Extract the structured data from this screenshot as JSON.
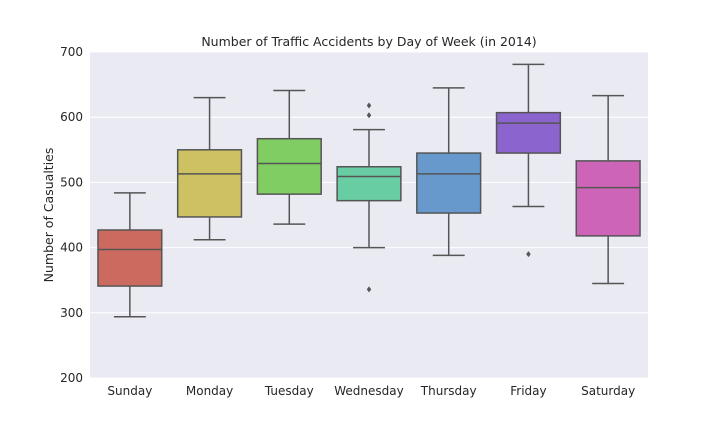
{
  "chart_data": {
    "type": "box",
    "title": "Number of Traffic Accidents by Day of Week (in 2014)",
    "xlabel": "",
    "ylabel": "Number of Casualties",
    "ylim": [
      200,
      700
    ],
    "yticks": [
      200,
      300,
      400,
      500,
      600,
      700
    ],
    "grid": true,
    "background": "#eaeaf2",
    "categories": [
      "Sunday",
      "Monday",
      "Tuesday",
      "Wednesday",
      "Thursday",
      "Friday",
      "Saturday"
    ],
    "boxes": [
      {
        "category": "Sunday",
        "whisker_low": 294,
        "q1": 341,
        "median": 397,
        "q3": 427,
        "whisker_high": 484,
        "outliers": [],
        "color": "#cd6a5f"
      },
      {
        "category": "Monday",
        "whisker_low": 412,
        "q1": 447,
        "median": 513,
        "q3": 550,
        "whisker_high": 630,
        "outliers": [],
        "color": "#cdc161"
      },
      {
        "category": "Tuesday",
        "whisker_low": 436,
        "q1": 482,
        "median": 529,
        "q3": 567,
        "whisker_high": 641,
        "outliers": [],
        "color": "#80cd63"
      },
      {
        "category": "Wednesday",
        "whisker_low": 400,
        "q1": 472,
        "median": 509,
        "q3": 524,
        "whisker_high": 581,
        "outliers": [
          336,
          603,
          618
        ],
        "color": "#68cda2"
      },
      {
        "category": "Thursday",
        "whisker_low": 388,
        "q1": 453,
        "median": 513,
        "q3": 545,
        "whisker_high": 645,
        "outliers": [],
        "color": "#6799cd"
      },
      {
        "category": "Friday",
        "whisker_low": 463,
        "q1": 545,
        "median": 591,
        "q3": 607,
        "whisker_high": 681,
        "outliers": [
          390
        ],
        "color": "#8c64cd"
      },
      {
        "category": "Saturday",
        "whisker_low": 345,
        "q1": 418,
        "median": 492,
        "q3": 533,
        "whisker_high": 633,
        "outliers": [],
        "color": "#cd64b8"
      }
    ]
  }
}
